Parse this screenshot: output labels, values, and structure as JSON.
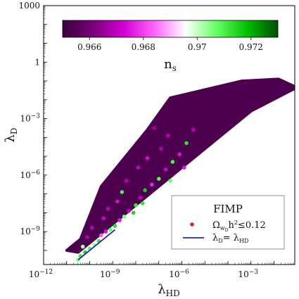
{
  "chart_data": {
    "type": "scatter",
    "title": "",
    "xlabel": {
      "main": "λ",
      "sub": "HD"
    },
    "ylabel": {
      "main": "λ",
      "sub": "D"
    },
    "xscale": "log",
    "yscale": "log",
    "xlim_log10": [
      -12,
      -1.1
    ],
    "ylim_log10": [
      -10.75,
      3.0
    ],
    "x_ticks": [
      {
        "log10": -12,
        "base": "10",
        "exp": "−12"
      },
      {
        "log10": -9,
        "base": "10",
        "exp": "−9"
      },
      {
        "log10": -6,
        "base": "10",
        "exp": "−6"
      },
      {
        "log10": -3,
        "base": "10",
        "exp": "−3"
      }
    ],
    "y_ticks": [
      {
        "log10": 3,
        "label": "1000"
      },
      {
        "log10": 0,
        "label": "1"
      },
      {
        "log10": -3,
        "base": "10",
        "exp": "−3"
      },
      {
        "log10": -6,
        "base": "10",
        "exp": "−6"
      },
      {
        "log10": -9,
        "base": "10",
        "exp": "−9"
      }
    ],
    "colorbar": {
      "label": {
        "main": "n",
        "sub": "s"
      },
      "range": [
        0.965,
        0.973
      ],
      "ticks": [
        "0.966",
        "0.968",
        "0.97",
        "0.972"
      ],
      "tick_values": [
        0.966,
        0.968,
        0.97,
        0.972
      ],
      "colors": [
        "#3d003d",
        "#7a007a",
        "#d400d4",
        "#ff66ff",
        "#ffffff",
        "#66ff66",
        "#00c000",
        "#004d00"
      ],
      "position": "top"
    },
    "region": {
      "description_boundary_log10": [
        [
          -10.4,
          -9.4
        ],
        [
          -9.5,
          -6.6
        ],
        [
          -7.5,
          -3.6
        ],
        [
          -6.5,
          -1.9
        ],
        [
          -3.4,
          -1.0
        ],
        [
          -1.8,
          -0.9
        ],
        [
          -1.1,
          -1.3
        ],
        [
          -1.1,
          -1.4
        ],
        [
          -3.0,
          -2.6
        ],
        [
          -6.0,
          -5.6
        ],
        [
          -9.0,
          -8.6
        ],
        [
          -10.5,
          -10.1
        ],
        [
          -11.0,
          -10.0
        ]
      ],
      "dominant_ns": 0.9653
    },
    "highlight_points_log10": [
      {
        "x": -10.5,
        "y": -10.5,
        "ns": 0.9705
      },
      {
        "x": -10.4,
        "y": -10.3,
        "ns": 0.9712
      },
      {
        "x": -10.2,
        "y": -10.1,
        "ns": 0.9715
      },
      {
        "x": -10.0,
        "y": -9.9,
        "ns": 0.9709
      },
      {
        "x": -9.8,
        "y": -9.7,
        "ns": 0.9704
      },
      {
        "x": -10.3,
        "y": -9.8,
        "ns": 0.9702
      },
      {
        "x": -9.6,
        "y": -9.5,
        "ns": 0.9712
      },
      {
        "x": -9.5,
        "y": -9.2,
        "ns": 0.9683
      },
      {
        "x": -9.3,
        "y": -9.0,
        "ns": 0.9675
      },
      {
        "x": -9.1,
        "y": -8.9,
        "ns": 0.9708
      },
      {
        "x": -8.9,
        "y": -8.7,
        "ns": 0.9714
      },
      {
        "x": -9.4,
        "y": -8.3,
        "ns": 0.9672
      },
      {
        "x": -8.7,
        "y": -8.4,
        "ns": 0.9676
      },
      {
        "x": -8.5,
        "y": -8.2,
        "ns": 0.9706
      },
      {
        "x": -8.3,
        "y": -7.9,
        "ns": 0.967
      },
      {
        "x": -8.8,
        "y": -7.4,
        "ns": 0.9674
      },
      {
        "x": -8.0,
        "y": -7.6,
        "ns": 0.9712
      },
      {
        "x": -8.6,
        "y": -6.9,
        "ns": 0.971
      },
      {
        "x": -7.8,
        "y": -7.2,
        "ns": 0.9671
      },
      {
        "x": -8.4,
        "y": -6.3,
        "ns": 0.9669
      },
      {
        "x": -7.6,
        "y": -6.8,
        "ns": 0.9716
      },
      {
        "x": -7.3,
        "y": -6.5,
        "ns": 0.9677
      },
      {
        "x": -7.9,
        "y": -5.6,
        "ns": 0.9671
      },
      {
        "x": -7.0,
        "y": -6.2,
        "ns": 0.9709
      },
      {
        "x": -7.5,
        "y": -5.1,
        "ns": 0.9674
      },
      {
        "x": -6.7,
        "y": -5.7,
        "ns": 0.9672
      },
      {
        "x": -6.9,
        "y": -4.6,
        "ns": 0.9668
      },
      {
        "x": -6.4,
        "y": -5.3,
        "ns": 0.971
      },
      {
        "x": -6.1,
        "y": -4.9,
        "ns": 0.9675
      },
      {
        "x": -6.6,
        "y": -3.9,
        "ns": 0.967
      },
      {
        "x": -5.8,
        "y": -4.3,
        "ns": 0.9713
      },
      {
        "x": -5.5,
        "y": -3.6,
        "ns": 0.9669
      },
      {
        "x": -7.2,
        "y": -3.5,
        "ns": 0.9667
      },
      {
        "x": -9.9,
        "y": -8.8,
        "ns": 0.967
      },
      {
        "x": -10.1,
        "y": -9.3,
        "ns": 0.9668
      },
      {
        "x": -8.1,
        "y": -8.0,
        "ns": 0.9715
      },
      {
        "x": -9.2,
        "y": -7.8,
        "ns": 0.9669
      },
      {
        "x": -7.7,
        "y": -7.5,
        "ns": 0.9713
      },
      {
        "x": -6.5,
        "y": -6.3,
        "ns": 0.9707
      },
      {
        "x": -5.9,
        "y": -5.6,
        "ns": 0.9675
      }
    ],
    "line": {
      "name": {
        "a": "λ",
        "a_sub": "D",
        "eq": "= λ",
        "b_sub": "HD"
      },
      "x_log10": [
        -10.5,
        -8.9
      ],
      "y_log10": [
        -10.5,
        -8.9
      ],
      "color": "#0000cc"
    },
    "legend": {
      "title": "FIMP",
      "entries": [
        {
          "kind": "marker",
          "color": "#e02020",
          "label": {
            "a": "Ω",
            "a_sub": "w",
            "a_subsub": "D",
            "rest": "h",
            "rest_sup": "2",
            "tail": "≤0.12"
          }
        },
        {
          "kind": "line",
          "color": "#0000cc",
          "label": {
            "a": "λ",
            "a_sub": "D",
            "eq": "= λ",
            "b_sub": "HD"
          }
        }
      ],
      "placement": "lower-right"
    }
  }
}
